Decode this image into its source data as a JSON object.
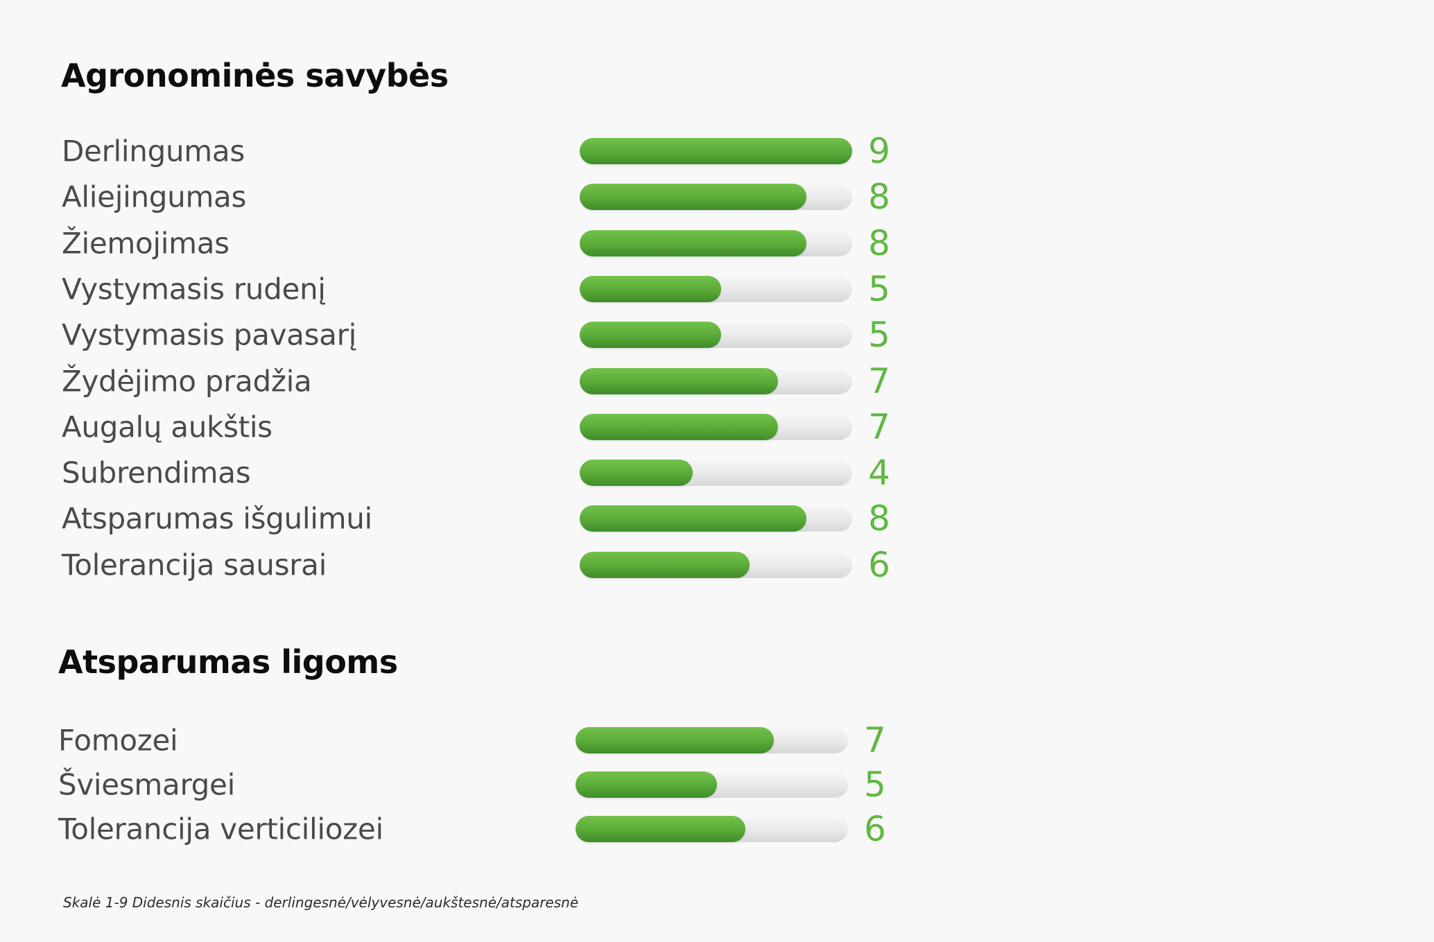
{
  "sections": [
    {
      "title": "Agronominės savybės",
      "rows": [
        {
          "label": "Derlingumas",
          "value": 9
        },
        {
          "label": "Aliejingumas",
          "value": 8
        },
        {
          "label": "Žiemojimas",
          "value": 8
        },
        {
          "label": "Vystymasis rudenį",
          "value": 5
        },
        {
          "label": "Vystymasis pavasarį",
          "value": 5
        },
        {
          "label": "Žydėjimo pradžia",
          "value": 7
        },
        {
          "label": "Augalų aukštis",
          "value": 7
        },
        {
          "label": "Subrendimas",
          "value": 4
        },
        {
          "label": "Atsparumas išgulimui",
          "value": 8
        },
        {
          "label": "Tolerancija sausrai",
          "value": 6
        }
      ]
    },
    {
      "title": "Atsparumas ligoms",
      "rows": [
        {
          "label": "Fomozei",
          "value": 7
        },
        {
          "label": "Šviesmargei",
          "value": 5
        },
        {
          "label": "Tolerancija verticiliozei",
          "value": 6
        }
      ]
    }
  ],
  "footnote": "Skalė 1-9 Didesnis skaičius - derlingesnė/vėlyvesnė/aukštesnė/atsparesnė",
  "colors": {
    "fill": "#5aaa38",
    "score": "#5fb842",
    "track": "#e6e7e8",
    "background": "#f8f8f8"
  },
  "chart_data": [
    {
      "type": "bar",
      "title": "Agronominės savybės",
      "categories": [
        "Derlingumas",
        "Aliejingumas",
        "Žiemojimas",
        "Vystymasis rudenį",
        "Vystymasis pavasarį",
        "Žydėjimo pradžia",
        "Augalų aukštis",
        "Subrendimas",
        "Atsparumas išgulimui",
        "Tolerancija sausrai"
      ],
      "values": [
        9,
        8,
        8,
        5,
        5,
        7,
        7,
        4,
        8,
        6
      ],
      "xlim": [
        0,
        9
      ],
      "orientation": "horizontal",
      "grid": false
    },
    {
      "type": "bar",
      "title": "Atsparumas ligoms",
      "categories": [
        "Fomozei",
        "Šviesmargei",
        "Tolerancija verticiliozei"
      ],
      "values": [
        7,
        5,
        6
      ],
      "xlim": [
        0,
        9
      ],
      "orientation": "horizontal",
      "grid": false
    }
  ]
}
